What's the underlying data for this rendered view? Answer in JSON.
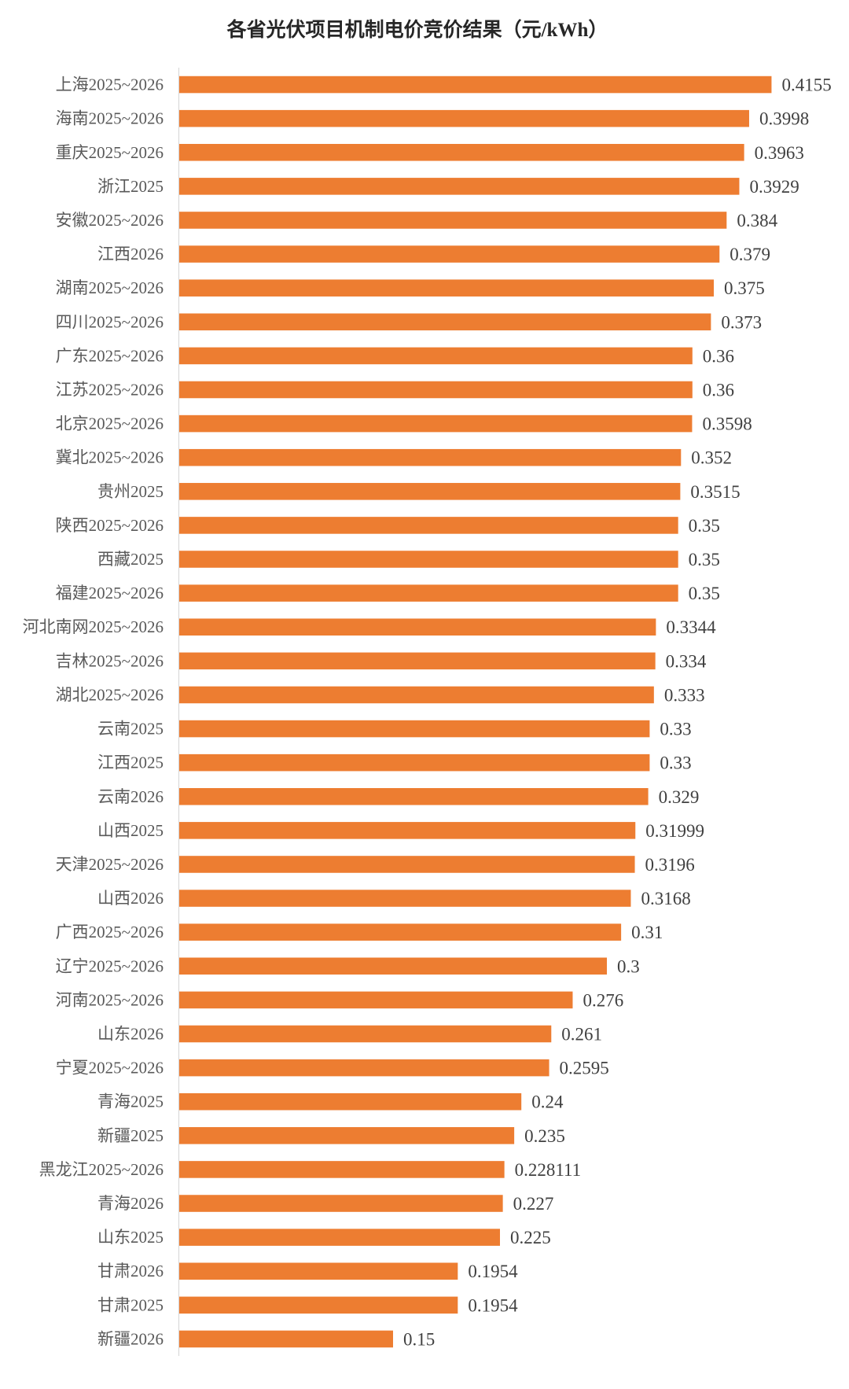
{
  "chart_data": {
    "type": "bar",
    "orientation": "horizontal",
    "title": "各省光伏项目机制电价竞价结果（元/kWh）",
    "bar_color": "#ED7D31",
    "axis_color": "#D9D9D9",
    "categories": [
      "上海2025~2026",
      "海南2025~2026",
      "重庆2025~2026",
      "浙江2025",
      "安徽2025~2026",
      "江西2026",
      "湖南2025~2026",
      "四川2025~2026",
      "广东2025~2026",
      "江苏2025~2026",
      "北京2025~2026",
      "冀北2025~2026",
      "贵州2025",
      "陕西2025~2026",
      "西藏2025",
      "福建2025~2026",
      "河北南网2025~2026",
      "吉林2025~2026",
      "湖北2025~2026",
      "云南2025",
      "江西2025",
      "云南2026",
      "山西2025",
      "天津2025~2026",
      "山西2026",
      "广西2025~2026",
      "辽宁2025~2026",
      "河南2025~2026",
      "山东2026",
      "宁夏2025~2026",
      "青海2025",
      "新疆2025",
      "黑龙江2025~2026",
      "青海2026",
      "山东2025",
      "甘肃2026",
      "甘肃2025",
      "新疆2026"
    ],
    "values": [
      0.4155,
      0.3998,
      0.3963,
      0.3929,
      0.384,
      0.379,
      0.375,
      0.373,
      0.36,
      0.36,
      0.3598,
      0.352,
      0.3515,
      0.35,
      0.35,
      0.35,
      0.3344,
      0.334,
      0.333,
      0.33,
      0.33,
      0.329,
      0.31999,
      0.3196,
      0.3168,
      0.31,
      0.3,
      0.276,
      0.261,
      0.2595,
      0.24,
      0.235,
      0.228111,
      0.227,
      0.225,
      0.1954,
      0.1954,
      0.15
    ]
  }
}
